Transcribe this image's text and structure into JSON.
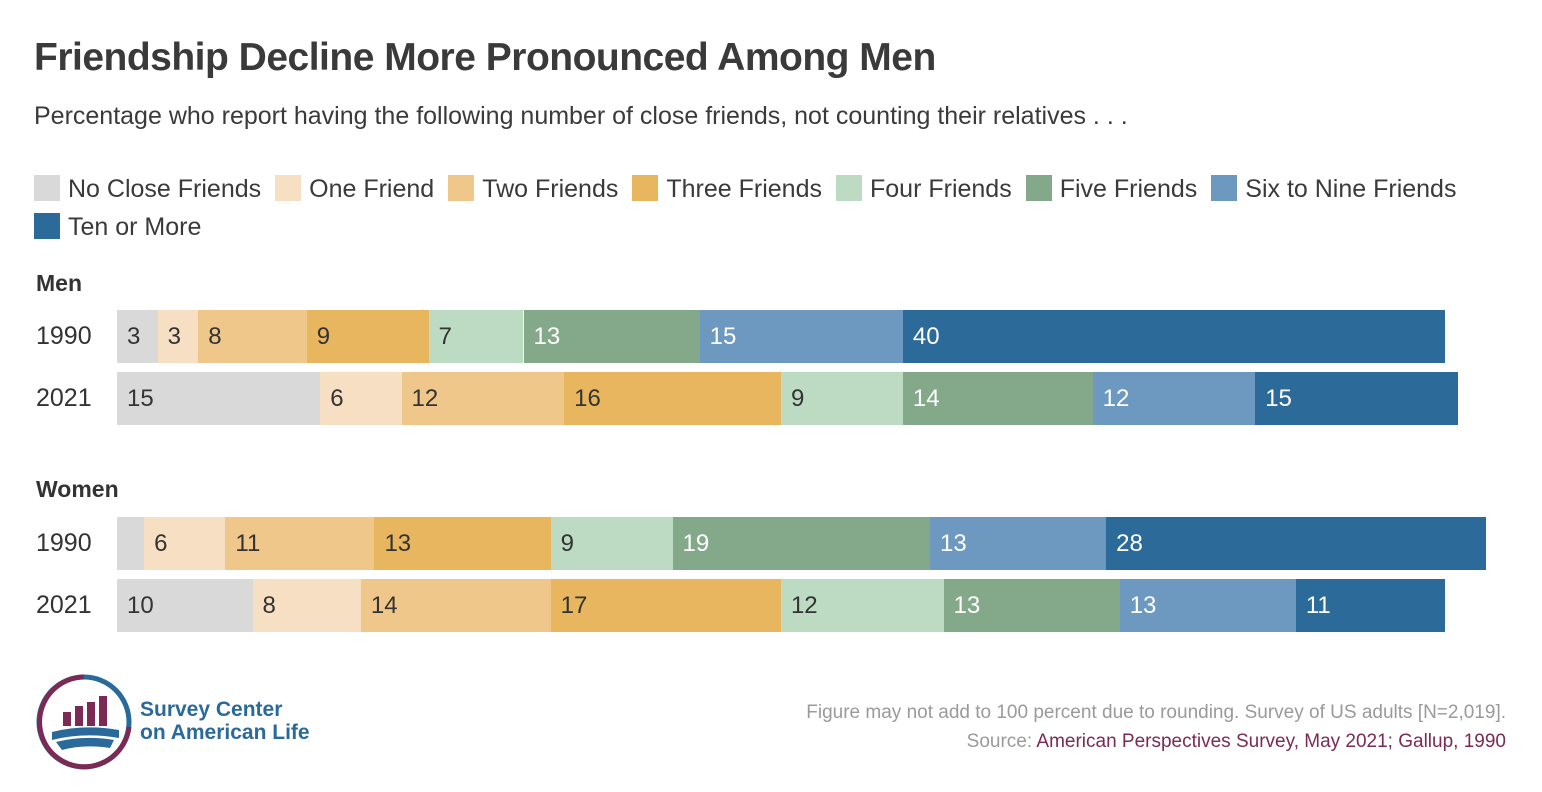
{
  "chart_data": {
    "type": "bar",
    "orientation": "horizontal",
    "stacked": true,
    "title": "Friendship Decline More Pronounced Among Men",
    "subtitle": "Percentage who report having the following number of close friends, not counting their relatives . . .",
    "legend": [
      {
        "name": "No Close Friends",
        "color": "#d9d9d9"
      },
      {
        "name": "One Friend",
        "color": "#f6dfc2"
      },
      {
        "name": "Two Friends",
        "color": "#f0c78b"
      },
      {
        "name": "Three Friends",
        "color": "#e8b65f"
      },
      {
        "name": "Four Friends",
        "color": "#bcdbc2"
      },
      {
        "name": "Five Friends",
        "color": "#84a98a"
      },
      {
        "name": "Six to Nine Friends",
        "color": "#6d98c0"
      },
      {
        "name": "Ten or More",
        "color": "#2b6a99"
      }
    ],
    "groups": [
      {
        "name": "Men",
        "rows": [
          {
            "label": "1990",
            "values": [
              3,
              3,
              8,
              9,
              7,
              13,
              15,
              40
            ],
            "labels": [
              "3",
              "3",
              "8",
              "9",
              "7",
              "13",
              "15",
              "40"
            ]
          },
          {
            "label": "2021",
            "values": [
              15,
              6,
              12,
              16,
              9,
              14,
              12,
              15
            ],
            "labels": [
              "15",
              "6",
              "12",
              "16",
              "9",
              "14",
              "12",
              "15"
            ]
          }
        ]
      },
      {
        "name": "Women",
        "rows": [
          {
            "label": "1990",
            "values": [
              2,
              6,
              11,
              13,
              9,
              19,
              13,
              28
            ],
            "labels": [
              "",
              "6",
              "11",
              "13",
              "9",
              "19",
              "13",
              "28"
            ]
          },
          {
            "label": "2021",
            "values": [
              10,
              8,
              14,
              17,
              12,
              13,
              13,
              11
            ],
            "labels": [
              "10",
              "8",
              "14",
              "17",
              "12",
              "13",
              "13",
              "11"
            ]
          }
        ]
      }
    ],
    "xlim": [
      0,
      100
    ]
  },
  "footnote": {
    "line1": "Figure may not add to 100 percent due to rounding. Survey of US adults [N=2,019].",
    "source_prefix": "Source: ",
    "source_text": "American Perspectives Survey, May 2021; Gallup, 1990"
  },
  "logo": {
    "line1": "Survey Center",
    "line2": "on American Life"
  }
}
